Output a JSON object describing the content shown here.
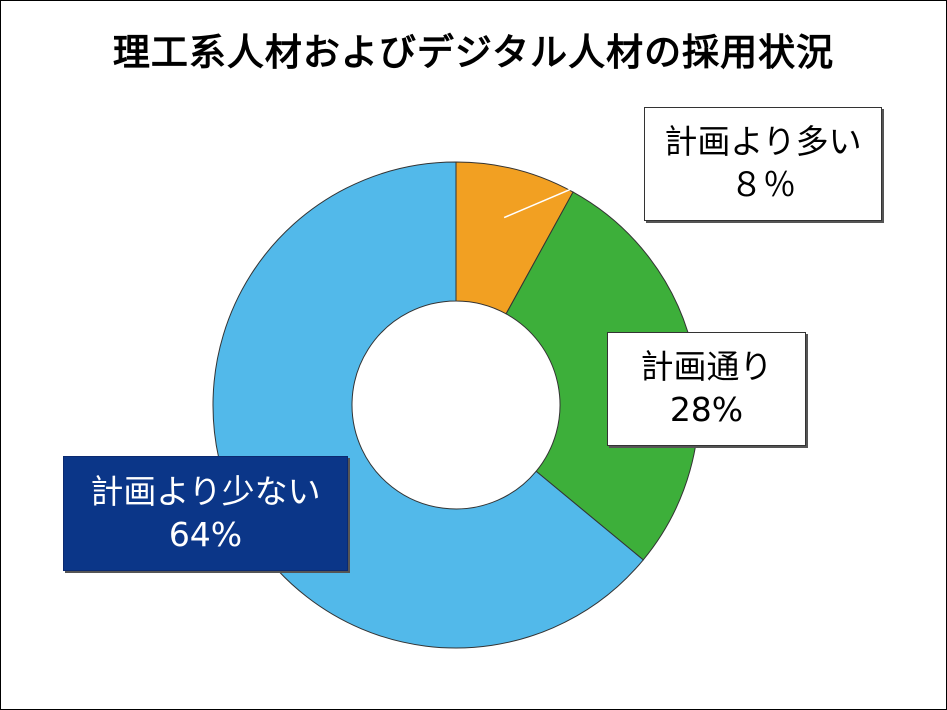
{
  "chart_data": {
    "type": "pie",
    "donut": true,
    "title": "理工系人材およびデジタル人材の採用状況",
    "slices": [
      {
        "key": "more",
        "label": "計画より多い",
        "value_label": "８％",
        "value": 8,
        "color": "#f2a022"
      },
      {
        "key": "plan",
        "label": "計画通り",
        "value_label": "28%",
        "value": 28,
        "color": "#3daf3a"
      },
      {
        "key": "less",
        "label": "計画より少ない",
        "value_label": "64%",
        "value": 64,
        "color": "#52b9ea"
      }
    ],
    "highlight_label_color": "#0b3688",
    "legend": "none"
  }
}
